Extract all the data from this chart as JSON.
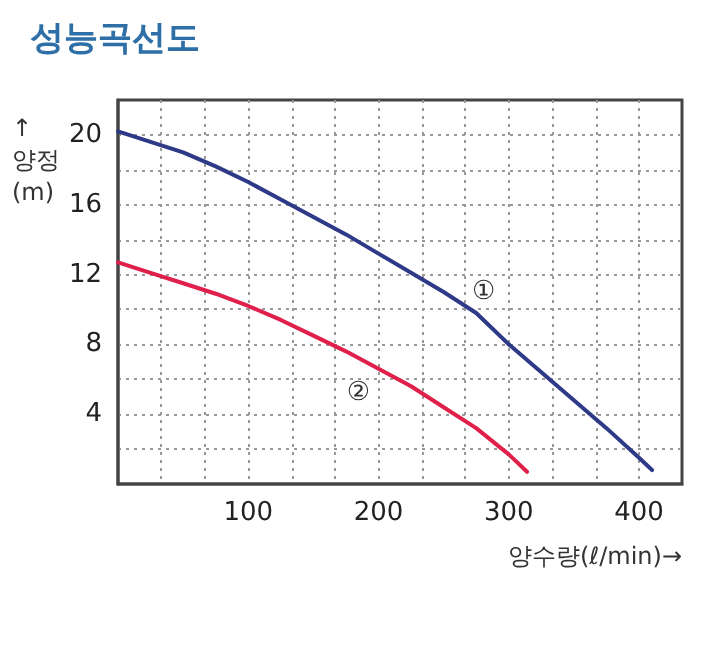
{
  "chart_data": {
    "type": "line",
    "title": "성능곡선도",
    "xlabel": "양수량(ℓ/min)→",
    "ylabel": "↑ 양정 (m)",
    "xlim": [
      0,
      433
    ],
    "ylim": [
      0,
      22
    ],
    "xticks": [
      {
        "value": 33.3,
        "label": null
      },
      {
        "value": 66.7,
        "label": null
      },
      100,
      {
        "value": 133.3,
        "label": null
      },
      {
        "value": 166.7,
        "label": null
      },
      200,
      {
        "value": 233.3,
        "label": null
      },
      {
        "value": 266.7,
        "label": null
      },
      300,
      {
        "value": 333.3,
        "label": null
      },
      {
        "value": 366.7,
        "label": null
      },
      400
    ],
    "yticks": [
      {
        "value": 2,
        "label": null
      },
      4,
      {
        "value": 6,
        "label": null
      },
      8,
      {
        "value": 10,
        "label": null
      },
      12,
      {
        "value": 14,
        "label": null
      },
      16,
      {
        "value": 18,
        "label": null
      },
      20
    ],
    "grid": true,
    "marker": "none",
    "line_style": "solid",
    "series": [
      {
        "color": "#2e3a87",
        "x": [
          0,
          25,
          50,
          75,
          100,
          125,
          150,
          175,
          200,
          225,
          250,
          275,
          300,
          325,
          350,
          375,
          400,
          410
        ],
        "values": [
          20.2,
          19.6,
          19,
          18.2,
          17.3,
          16.3,
          15.3,
          14.3,
          13.2,
          12.1,
          11,
          9.8,
          8,
          6.4,
          4.8,
          3.2,
          1.5,
          0.8
        ]
      },
      {
        "color": "#e0204a",
        "x": [
          0,
          25,
          50,
          75,
          100,
          125,
          150,
          175,
          200,
          225,
          250,
          275,
          300,
          314
        ],
        "values": [
          12.7,
          12.1,
          11.5,
          10.9,
          10.2,
          9.4,
          8.5,
          7.6,
          6.6,
          5.6,
          4.4,
          3.2,
          1.7,
          0.7
        ]
      }
    ],
    "annotations": [
      "①",
      "②"
    ]
  }
}
